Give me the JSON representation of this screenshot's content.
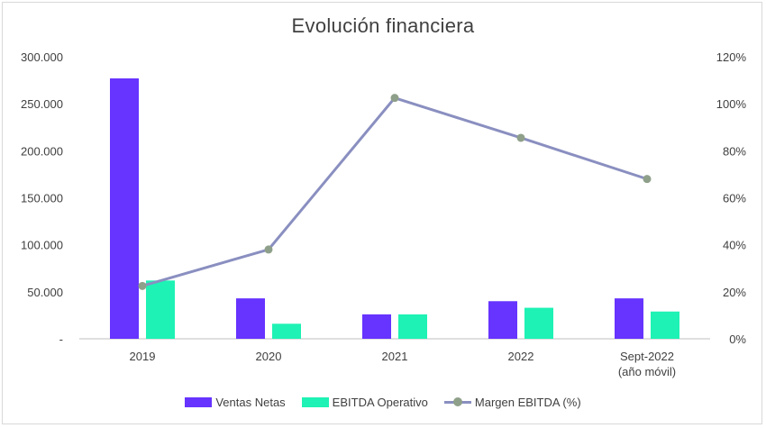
{
  "chart_data": {
    "type": "bar",
    "title": "Evolución financiera",
    "categories": [
      "2019",
      "2020",
      "2021",
      "2022",
      "Sept-2022\n(año móvil)"
    ],
    "series": [
      {
        "name": "Ventas Netas",
        "type": "bar",
        "axis": "left",
        "color": "#6633ff",
        "values": [
          277000,
          43000,
          26000,
          40000,
          43000
        ]
      },
      {
        "name": "EBITDA Operativo",
        "type": "bar",
        "axis": "left",
        "color": "#1ef2b4",
        "values": [
          62000,
          16000,
          26000,
          33000,
          29000
        ]
      },
      {
        "name": "Margen EBITDA (%)",
        "type": "line",
        "axis": "right",
        "color": "#8a8fc0",
        "marker_color": "#8fa08a",
        "values": [
          22.5,
          38,
          102.5,
          85.5,
          68
        ]
      }
    ],
    "y_left": {
      "min": 0,
      "max": 300000,
      "ticks": [
        "-",
        "50.000",
        "100.000",
        "150.000",
        "200.000",
        "250.000",
        "300.000"
      ]
    },
    "y_right": {
      "min": 0,
      "max": 120,
      "ticks": [
        "0%",
        "20%",
        "40%",
        "60%",
        "80%",
        "100%",
        "120%"
      ]
    },
    "grid": false,
    "legend_position": "bottom"
  }
}
